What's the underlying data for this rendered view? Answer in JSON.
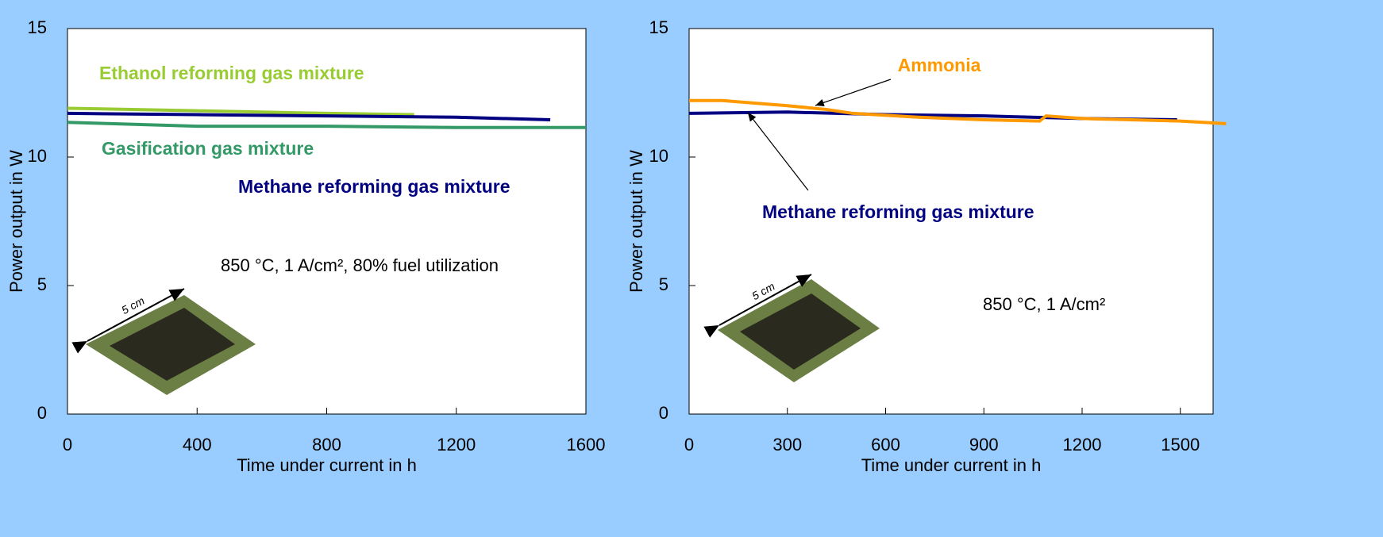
{
  "chart_data": [
    {
      "type": "line",
      "x_label": "Time under current in h",
      "y_label": "Power output in W",
      "annotation": "850 °C, 1 A/cm², 80% fuel utilization",
      "inset_label": "5 cm",
      "xlim": [
        0,
        1600
      ],
      "xticks": [
        0,
        400,
        800,
        1200,
        1600
      ],
      "ylim": [
        0,
        15
      ],
      "yticks": [
        0,
        5,
        10,
        15
      ],
      "series": [
        {
          "name": "Ethanol reforming gas mixture",
          "color": "#99cc33",
          "x": [
            0,
            200,
            400,
            600,
            800,
            1070
          ],
          "values": [
            11.9,
            11.85,
            11.8,
            11.75,
            11.7,
            11.65
          ]
        },
        {
          "name": "Gasification gas mixture",
          "color": "#339966",
          "x": [
            0,
            400,
            800,
            1200,
            1600
          ],
          "values": [
            11.35,
            11.2,
            11.2,
            11.15,
            11.15
          ]
        },
        {
          "name": "Methane reforming gas mixture",
          "color": "#000080",
          "x": [
            0,
            400,
            800,
            1200,
            1490
          ],
          "values": [
            11.7,
            11.65,
            11.6,
            11.55,
            11.45
          ]
        }
      ]
    },
    {
      "type": "line",
      "x_label": "Time under current in h",
      "y_label": "Power output in W",
      "annotation": "850 °C, 1 A/cm²",
      "inset_label": "5 cm",
      "xlim": [
        0,
        1600
      ],
      "xticks": [
        0,
        300,
        600,
        900,
        1200,
        1500
      ],
      "ylim": [
        0,
        15
      ],
      "yticks": [
        0,
        5,
        10,
        15
      ],
      "series": [
        {
          "name": "Methane reforming gas mixture",
          "color": "#000080",
          "x": [
            0,
            300,
            600,
            900,
            1200,
            1490
          ],
          "values": [
            11.7,
            11.75,
            11.65,
            11.6,
            11.5,
            11.45
          ]
        },
        {
          "name": "Ammonia",
          "color": "#ff9900",
          "x": [
            0,
            100,
            200,
            300,
            420,
            500,
            700,
            900,
            1070,
            1090,
            1200,
            1500,
            1640
          ],
          "values": [
            12.2,
            12.2,
            12.1,
            12.0,
            11.85,
            11.7,
            11.55,
            11.45,
            11.4,
            11.6,
            11.5,
            11.4,
            11.3
          ]
        }
      ]
    }
  ]
}
